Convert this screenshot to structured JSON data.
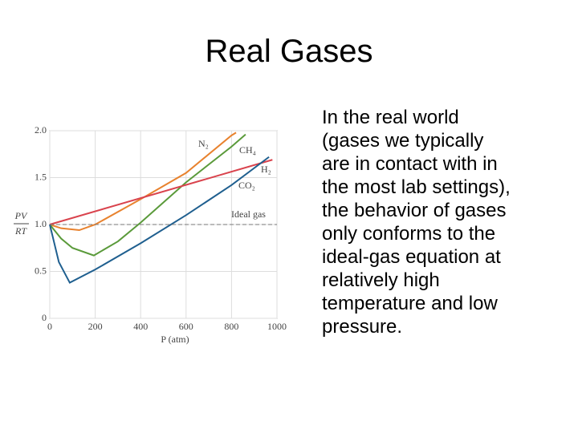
{
  "title": "Real Gases",
  "body": [
    "In the real world",
    "(gases we typically",
    "are in contact with in",
    "the most lab settings),",
    "the behavior of gases",
    "only conforms to the",
    "ideal-gas equation at",
    "relatively high",
    "temperature and low",
    "pressure."
  ],
  "chart_data": {
    "type": "line",
    "x_label": "P (atm)",
    "y_label_top": "PV",
    "y_label_bottom": "RT",
    "xlim": [
      0,
      1000
    ],
    "xticks": [
      0,
      200,
      400,
      600,
      800,
      1000
    ],
    "ylim": [
      0,
      2
    ],
    "yticks": [
      0,
      0.5,
      {
        "value": 1,
        "label": "1.0"
      },
      1.5,
      {
        "value": 2,
        "label": "2.0"
      }
    ],
    "grid": true,
    "series": [
      {
        "name": "N₂",
        "color": "#e8822e",
        "x": [
          0,
          50,
          130,
          200,
          400,
          600,
          800,
          820
        ],
        "values": [
          1.0,
          0.96,
          0.94,
          1.0,
          1.27,
          1.55,
          1.95,
          1.98
        ]
      },
      {
        "name": "CH₄",
        "color": "#5a9a3a",
        "x": [
          0,
          50,
          100,
          194,
          300,
          400,
          600,
          800,
          862
        ],
        "values": [
          1.0,
          0.85,
          0.75,
          0.67,
          0.82,
          1.02,
          1.45,
          1.83,
          1.96
        ]
      },
      {
        "name": "H₂",
        "color": "#d9434d",
        "x": [
          0,
          980
        ],
        "values": [
          1.0,
          1.69
        ]
      },
      {
        "name": "CO₂",
        "color": "#1f5f8f",
        "x": [
          0,
          40,
          88,
          200,
          400,
          600,
          800,
          965
        ],
        "values": [
          1.0,
          0.6,
          0.38,
          0.52,
          0.8,
          1.1,
          1.42,
          1.72
        ]
      },
      {
        "name": "Ideal gas",
        "color": "#777777",
        "dash": true,
        "x": [
          0,
          1000
        ],
        "values": [
          1.0,
          1.0
        ]
      }
    ]
  }
}
